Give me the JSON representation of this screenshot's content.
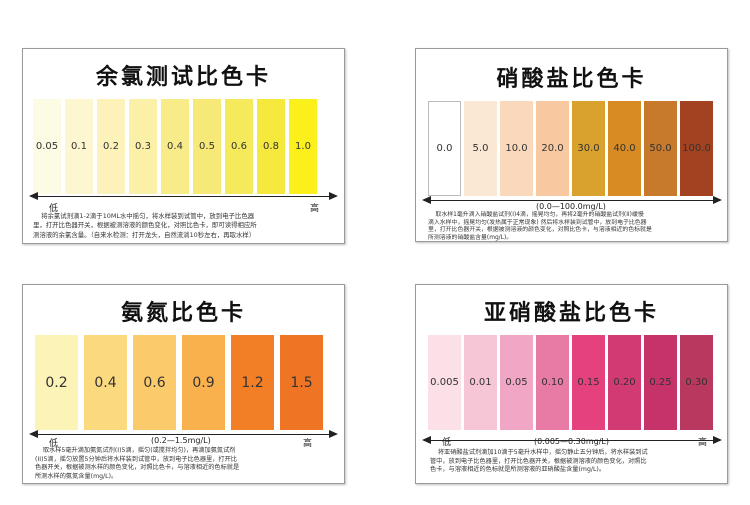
{
  "cards": [
    {
      "id": "chlorine",
      "title": "余氯测试比色卡",
      "low": "低",
      "high": "高",
      "range": "",
      "description": "    将余氯试剂滴1-2滴于10ML水中摇匀，将水样装到试管中，放到电子比色器\n里，打开比色器开关，根据被测溶液的颜色变化，对照比色卡，即可读得相应所\n测溶液的余氯含量。（自来水检测：打开龙头，自然流淌10秒左右，再取水样）",
      "swatches": [
        {
          "label": "0.05",
          "color": "#fefbe4"
        },
        {
          "label": "0.1",
          "color": "#fdf6d0"
        },
        {
          "label": "0.2",
          "color": "#fdf3ba"
        },
        {
          "label": "0.3",
          "color": "#fbf0a8"
        },
        {
          "label": "0.4",
          "color": "#f8ec8a"
        },
        {
          "label": "0.5",
          "color": "#f6e977"
        },
        {
          "label": "0.6",
          "color": "#f5e95c"
        },
        {
          "label": "0.8",
          "color": "#f4e93c"
        },
        {
          "label": "1.0",
          "color": "#fbef1c"
        }
      ]
    },
    {
      "id": "nitrate",
      "title": "硝酸盐比色卡",
      "low": "",
      "high": "",
      "range": "(0.0—100.0mg/L)",
      "description": "    取水样1毫升滴入硝酸盐试剂(I)4滴，摇晃均匀，再将2毫升的硝酸盐试剂(II)缓慢\n滴入水样中，摇晃均匀(发热属于正常现象) 然后将水样装到试管中，放到电子比色器\n里，打开比色器开关，根据被测溶液的颜色变化，对照比色卡，与溶液相近的色标就是\n所测溶液的硝酸盐含量(mg/L)。",
      "swatches": [
        {
          "label": "0.0",
          "color": "#ffffff"
        },
        {
          "label": "5.0",
          "color": "#fbe8d4"
        },
        {
          "label": "10.0",
          "color": "#fad8bb"
        },
        {
          "label": "20.0",
          "color": "#f8c9a1"
        },
        {
          "label": "30.0",
          "color": "#d9a22c"
        },
        {
          "label": "40.0",
          "color": "#d98b23"
        },
        {
          "label": "50.0",
          "color": "#c77a2b"
        },
        {
          "label": "100.0",
          "color": "#a34221"
        }
      ]
    },
    {
      "id": "ammonia",
      "title": "氨氮比色卡",
      "low": "低",
      "high": "高",
      "range": "(0.2—1.5mg/L)",
      "description": "    取水样5毫升滴加氨氮试剂(I)5滴，摇匀(或搅拌均匀)，再滴加氨氮试剂\n(II)5滴，摇匀放置5分钟后将水样装到试管中，放到电子比色器里，打开比\n色器开关，根据被测水样的颜色变化，对照比色卡，与溶液相近的色标就是\n所测水样的氨氮含量(mg/L)。",
      "swatches": [
        {
          "label": "0.2",
          "color": "#fcf3b6"
        },
        {
          "label": "0.4",
          "color": "#fbd97e"
        },
        {
          "label": "0.6",
          "color": "#fbca6a"
        },
        {
          "label": "0.9",
          "color": "#f9b14e"
        },
        {
          "label": "1.2",
          "color": "#f27f26"
        },
        {
          "label": "1.5",
          "color": "#ef7423"
        }
      ]
    },
    {
      "id": "nitrite",
      "title": "亚硝酸盐比色卡",
      "low": "低",
      "high": "高",
      "range": "(0.005—0.30mg/L)",
      "description": "    将亚硝酸盐试剂滴加10滴于5毫升水样中，摇匀静止五分钟后，将水样装到试\n管中，放到电子比色器里，打开比色器开关，根据被测溶液的颜色变化，对照比\n色卡，与溶液相近的色标就是所测溶液的亚硝酸盐含量(mg/L)。",
      "swatches": [
        {
          "label": "0.005",
          "color": "#fbe0e8"
        },
        {
          "label": "0.01",
          "color": "#f7c6d6"
        },
        {
          "label": "0.05",
          "color": "#f0a6c4"
        },
        {
          "label": "0.10",
          "color": "#e87ba6"
        },
        {
          "label": "0.15",
          "color": "#e6417f"
        },
        {
          "label": "0.20",
          "color": "#d23a73"
        },
        {
          "label": "0.25",
          "color": "#c6336b"
        },
        {
          "label": "0.30",
          "color": "#b9385f"
        }
      ]
    }
  ]
}
